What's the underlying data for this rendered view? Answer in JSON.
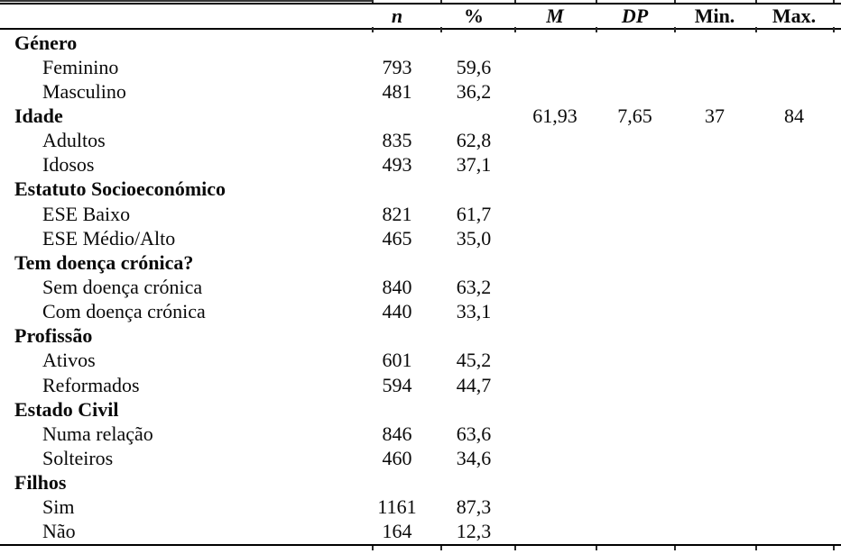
{
  "meta": {
    "language": "pt",
    "colors": {
      "background": "#ffffff",
      "text": "#0a0a0a",
      "rule": "#000000"
    }
  },
  "table": {
    "header": [
      "",
      "n",
      "%",
      "M",
      "DP",
      "Min.",
      "Max."
    ],
    "rows": [
      {
        "label": "Género",
        "group": true,
        "n": "",
        "pct": "",
        "m": "",
        "dp": "",
        "min": "",
        "max": ""
      },
      {
        "label": "Feminino",
        "group": false,
        "n": "793",
        "pct": "59,6",
        "m": "",
        "dp": "",
        "min": "",
        "max": ""
      },
      {
        "label": "Masculino",
        "group": false,
        "n": "481",
        "pct": "36,2",
        "m": "",
        "dp": "",
        "min": "",
        "max": ""
      },
      {
        "label": "Idade",
        "group": true,
        "n": "",
        "pct": "",
        "m": "61,93",
        "dp": "7,65",
        "min": "37",
        "max": "84"
      },
      {
        "label": "Adultos",
        "group": false,
        "n": "835",
        "pct": "62,8",
        "m": "",
        "dp": "",
        "min": "",
        "max": ""
      },
      {
        "label": "Idosos",
        "group": false,
        "n": "493",
        "pct": "37,1",
        "m": "",
        "dp": "",
        "min": "",
        "max": ""
      },
      {
        "label": "Estatuto Socioeconómico",
        "group": true,
        "n": "",
        "pct": "",
        "m": "",
        "dp": "",
        "min": "",
        "max": ""
      },
      {
        "label": "ESE Baixo",
        "group": false,
        "n": "821",
        "pct": "61,7",
        "m": "",
        "dp": "",
        "min": "",
        "max": ""
      },
      {
        "label": "ESE Médio/Alto",
        "group": false,
        "n": "465",
        "pct": "35,0",
        "m": "",
        "dp": "",
        "min": "",
        "max": ""
      },
      {
        "label": "Tem doença crónica?",
        "group": true,
        "n": "",
        "pct": "",
        "m": "",
        "dp": "",
        "min": "",
        "max": ""
      },
      {
        "label": "Sem doença crónica",
        "group": false,
        "n": "840",
        "pct": "63,2",
        "m": "",
        "dp": "",
        "min": "",
        "max": ""
      },
      {
        "label": "Com doença crónica",
        "group": false,
        "n": "440",
        "pct": "33,1",
        "m": "",
        "dp": "",
        "min": "",
        "max": ""
      },
      {
        "label": "Profissão",
        "group": true,
        "n": "",
        "pct": "",
        "m": "",
        "dp": "",
        "min": "",
        "max": ""
      },
      {
        "label": "Ativos",
        "group": false,
        "n": "601",
        "pct": "45,2",
        "m": "",
        "dp": "",
        "min": "",
        "max": ""
      },
      {
        "label": "Reformados",
        "group": false,
        "n": "594",
        "pct": "44,7",
        "m": "",
        "dp": "",
        "min": "",
        "max": ""
      },
      {
        "label": "Estado Civil",
        "group": true,
        "n": "",
        "pct": "",
        "m": "",
        "dp": "",
        "min": "",
        "max": ""
      },
      {
        "label": "Numa relação",
        "group": false,
        "n": "846",
        "pct": "63,6",
        "m": "",
        "dp": "",
        "min": "",
        "max": ""
      },
      {
        "label": "Solteiros",
        "group": false,
        "n": "460",
        "pct": "34,6",
        "m": "",
        "dp": "",
        "min": "",
        "max": ""
      },
      {
        "label": "Filhos",
        "group": true,
        "n": "",
        "pct": "",
        "m": "",
        "dp": "",
        "min": "",
        "max": ""
      },
      {
        "label": "Sim",
        "group": false,
        "n": "1161",
        "pct": "87,3",
        "m": "",
        "dp": "",
        "min": "",
        "max": ""
      },
      {
        "label": "Não",
        "group": false,
        "n": "164",
        "pct": "12,3",
        "m": "",
        "dp": "",
        "min": "",
        "max": ""
      }
    ]
  }
}
